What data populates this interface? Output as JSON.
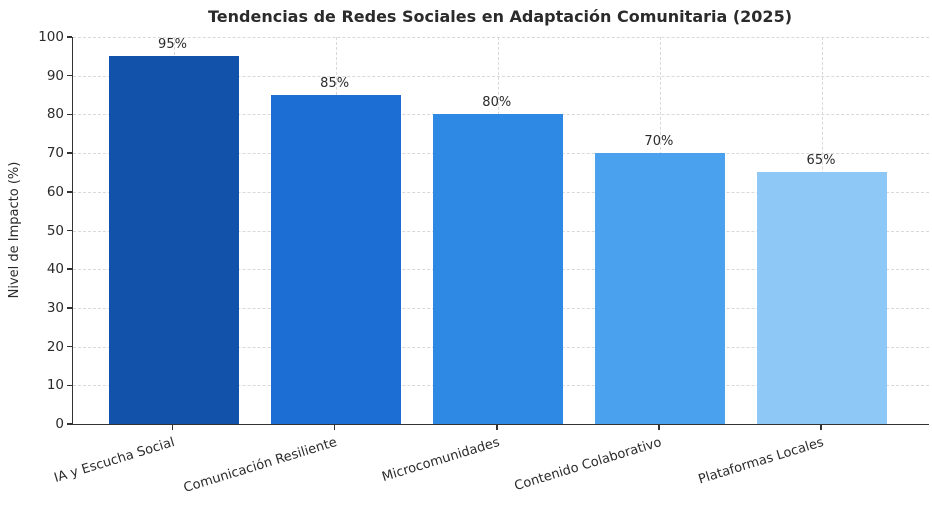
{
  "chart_data": {
    "type": "bar",
    "title": "Tendencias de Redes Sociales en Adaptación Comunitaria (2025)",
    "ylabel": "Nivel de Impacto (%)",
    "xlabel": "",
    "categories": [
      "IA y Escucha Social",
      "Comunicación Resiliente",
      "Microcomunidades",
      "Contenido Colaborativo",
      "Plataformas Locales"
    ],
    "values": [
      95,
      85,
      80,
      70,
      65
    ],
    "value_labels": [
      "95%",
      "85%",
      "80%",
      "70%",
      "65%"
    ],
    "bar_colors": [
      "#1352ab",
      "#1c6ed4",
      "#2e89e5",
      "#4aa2ef",
      "#8ec8f7"
    ],
    "ylim": [
      0,
      100
    ],
    "yticks": [
      0,
      10,
      20,
      30,
      40,
      50,
      60,
      70,
      80,
      90,
      100
    ],
    "grid": "dashed",
    "grid_color": "#d9d9d9",
    "axis_color": "#333333",
    "text_color": "#2b2b2b",
    "background": "#ffffff",
    "legend": "none"
  }
}
